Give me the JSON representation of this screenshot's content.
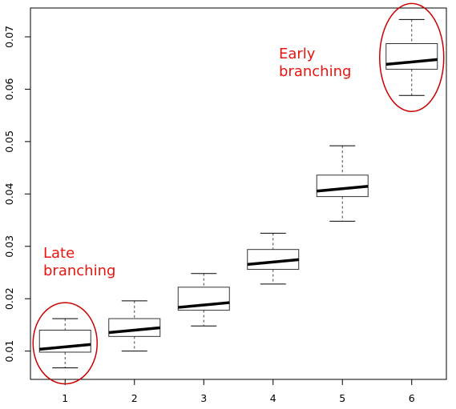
{
  "chart_data": {
    "type": "boxplot",
    "categories": [
      "1",
      "2",
      "3",
      "4",
      "5",
      "6"
    ],
    "boxes": [
      {
        "category": "1",
        "whisker_low": 0.0068,
        "q1": 0.0098,
        "median": 0.0108,
        "q3": 0.014,
        "whisker_high": 0.0162
      },
      {
        "category": "2",
        "whisker_low": 0.01,
        "q1": 0.0128,
        "median": 0.014,
        "q3": 0.0162,
        "whisker_high": 0.0196
      },
      {
        "category": "3",
        "whisker_low": 0.0148,
        "q1": 0.0178,
        "median": 0.0188,
        "q3": 0.0222,
        "whisker_high": 0.0248
      },
      {
        "category": "4",
        "whisker_low": 0.0228,
        "q1": 0.0256,
        "median": 0.027,
        "q3": 0.0294,
        "whisker_high": 0.0325
      },
      {
        "category": "5",
        "whisker_low": 0.0348,
        "q1": 0.0395,
        "median": 0.041,
        "q3": 0.0436,
        "whisker_high": 0.0492
      },
      {
        "category": "6",
        "whisker_low": 0.0588,
        "q1": 0.0638,
        "median": 0.0652,
        "q3": 0.0687,
        "whisker_high": 0.0733
      }
    ],
    "y_ticks": [
      "0.01",
      "0.02",
      "0.03",
      "0.04",
      "0.05",
      "0.06",
      "0.07"
    ],
    "ylim": [
      0.0046,
      0.0755
    ],
    "xlim": [
      0.5,
      6.5
    ],
    "grid": false,
    "annotations": [
      {
        "text_lines": [
          "Late",
          "branching"
        ],
        "target_category": "1"
      },
      {
        "text_lines": [
          "Early",
          "branching"
        ],
        "target_category": "6"
      }
    ],
    "colors": {
      "box": "#333333",
      "median": "#000000",
      "highlight": "#cc0000",
      "annotation_text": "#e8140f"
    }
  }
}
